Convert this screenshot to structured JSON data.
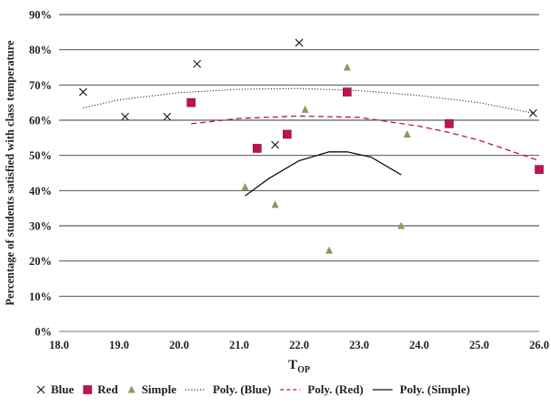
{
  "chart_data": {
    "type": "scatter",
    "title": "",
    "xlabel": "T",
    "xlabel_subscript": "OP",
    "ylabel": "Percentage of students satisfied with class temperature",
    "xlim": [
      18.0,
      26.0
    ],
    "ylim": [
      0,
      90
    ],
    "x_ticks": [
      "18.0",
      "19.0",
      "20.0",
      "21.0",
      "22.0",
      "23.0",
      "24.0",
      "25.0",
      "26.0"
    ],
    "y_ticks": [
      "0%",
      "10%",
      "20%",
      "30%",
      "40%",
      "50%",
      "60%",
      "70%",
      "80%",
      "90%"
    ],
    "grid": "horizontal",
    "legend_position": "bottom",
    "series": [
      {
        "name": "Blue",
        "marker": "x",
        "color": "#222222",
        "points": [
          [
            18.4,
            68
          ],
          [
            19.1,
            61
          ],
          [
            19.8,
            61
          ],
          [
            20.3,
            76
          ],
          [
            21.6,
            53
          ],
          [
            22.0,
            82
          ],
          [
            25.9,
            62
          ]
        ]
      },
      {
        "name": "Red",
        "marker": "square",
        "color": "#c0134a",
        "points": [
          [
            20.2,
            65
          ],
          [
            21.3,
            52
          ],
          [
            21.8,
            56
          ],
          [
            22.8,
            68
          ],
          [
            24.5,
            59
          ],
          [
            26.0,
            46
          ]
        ]
      },
      {
        "name": "Simple",
        "marker": "triangle",
        "color": "#8a9a5b",
        "points": [
          [
            21.1,
            41
          ],
          [
            21.6,
            36
          ],
          [
            22.1,
            63
          ],
          [
            22.5,
            23
          ],
          [
            22.8,
            75
          ],
          [
            23.7,
            30
          ],
          [
            23.8,
            56
          ]
        ]
      }
    ],
    "trendlines": [
      {
        "name": "Poly. (Blue)",
        "style": "dotted",
        "color": "#333333",
        "points": [
          [
            18.4,
            63.5
          ],
          [
            19.0,
            65.8
          ],
          [
            20.0,
            67.8
          ],
          [
            21.0,
            68.8
          ],
          [
            22.0,
            69.0
          ],
          [
            23.0,
            68.4
          ],
          [
            24.0,
            67.0
          ],
          [
            25.0,
            65.0
          ],
          [
            25.9,
            62.0
          ]
        ]
      },
      {
        "name": "Poly. (Red)",
        "style": "dashed",
        "color": "#c0134a",
        "points": [
          [
            20.2,
            59.0
          ],
          [
            21.0,
            60.5
          ],
          [
            22.0,
            61.2
          ],
          [
            23.0,
            60.8
          ],
          [
            24.0,
            58.3
          ],
          [
            24.5,
            56.5
          ],
          [
            25.0,
            54.3
          ],
          [
            26.0,
            48.5
          ]
        ]
      },
      {
        "name": "Poly. (Simple)",
        "style": "solid",
        "color": "#111111",
        "points": [
          [
            21.1,
            38.5
          ],
          [
            21.5,
            43.5
          ],
          [
            22.0,
            48.5
          ],
          [
            22.5,
            51.0
          ],
          [
            22.8,
            51.0
          ],
          [
            23.2,
            49.5
          ],
          [
            23.7,
            44.5
          ]
        ]
      }
    ],
    "legend": [
      {
        "label": "Blue",
        "marker": "x"
      },
      {
        "label": "Red",
        "marker": "square"
      },
      {
        "label": "Simple",
        "marker": "triangle"
      },
      {
        "label": "Poly. (Blue)",
        "marker": "dotted-line"
      },
      {
        "label": "Poly. (Red)",
        "marker": "dashed-line"
      },
      {
        "label": "Poly. (Simple)",
        "marker": "solid-line"
      }
    ]
  }
}
